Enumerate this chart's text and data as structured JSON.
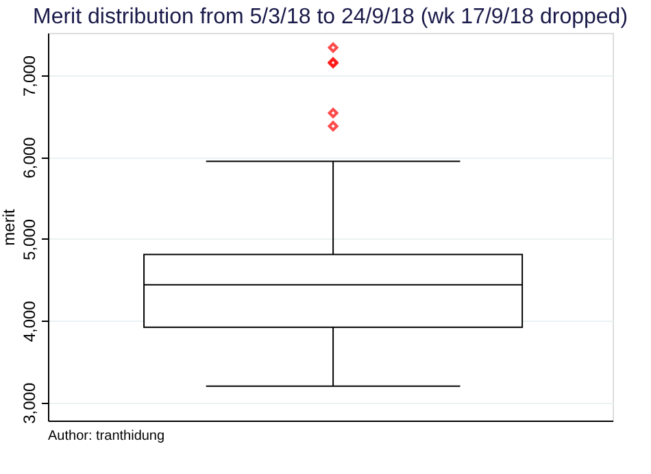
{
  "chart_data": {
    "type": "box",
    "title": "Merit distribution from 5/3/18 to 24/9/18 (wk 17/9/18 dropped)",
    "ylabel": "merit",
    "categories": [
      null
    ],
    "boxes": [
      {
        "low": 3200,
        "q1": 3920,
        "median": 4440,
        "q3": 4810,
        "high": 5950,
        "outliers": [
          7340,
          7160,
          7150,
          6540,
          6380
        ]
      }
    ],
    "color": "#000000",
    "ylim": [
      2780,
      7520
    ],
    "yticks": [
      {
        "value": 3000,
        "label": "3,000"
      },
      {
        "value": 4000,
        "label": "4,000"
      },
      {
        "value": 5000,
        "label": "5,000"
      },
      {
        "value": 6000,
        "label": "6,000"
      },
      {
        "value": 7000,
        "label": "7,000"
      }
    ],
    "grid": "y",
    "tick_labels": "y",
    "annotations": [
      "Author: tranthidung"
    ]
  }
}
